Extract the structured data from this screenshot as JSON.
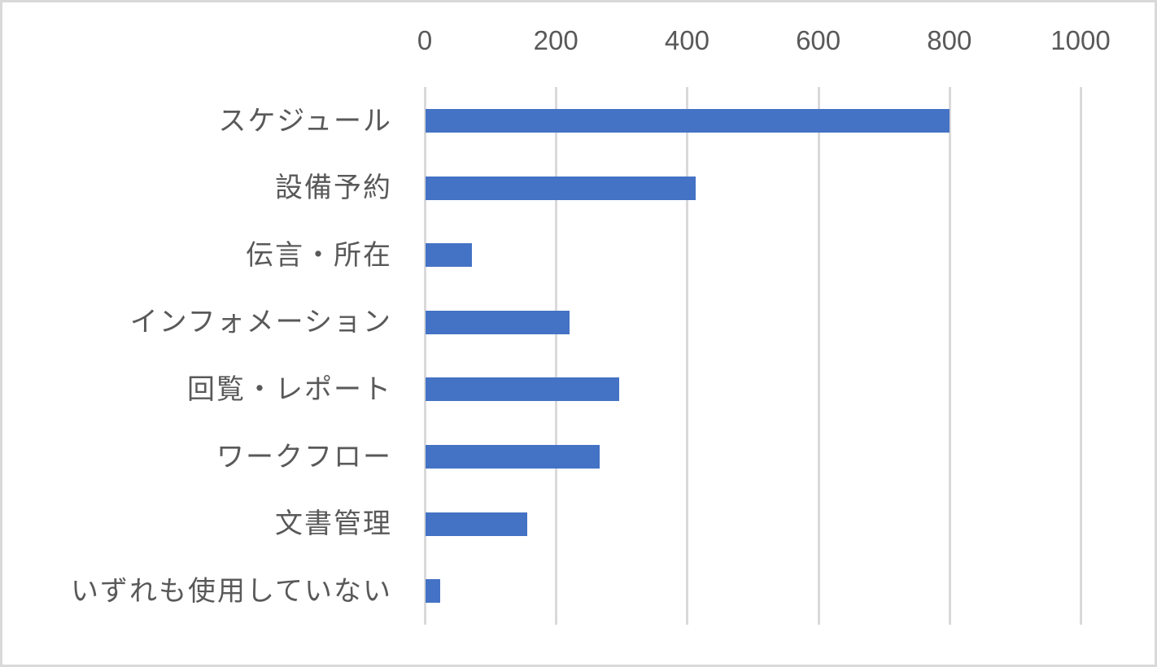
{
  "chart_data": {
    "type": "bar",
    "orientation": "horizontal",
    "title": "",
    "xlabel": "",
    "ylabel": "",
    "xlim": [
      0,
      1000
    ],
    "x_ticks": [
      "0",
      "200",
      "400",
      "600",
      "800",
      "1000"
    ],
    "x_axis_position": "top",
    "grid": true,
    "legend": null,
    "categories": [
      "スケジュール",
      "設備予約",
      "伝言・所在",
      "インフォメーション",
      "回覧・レポート",
      "ワークフロー",
      "文書管理",
      "いずれも使用していない"
    ],
    "values": [
      800,
      413,
      72,
      221,
      297,
      267,
      156,
      24
    ],
    "bar_color": "#4472C4",
    "gridline_color": "#D9D9D9",
    "text_color": "#595959"
  }
}
